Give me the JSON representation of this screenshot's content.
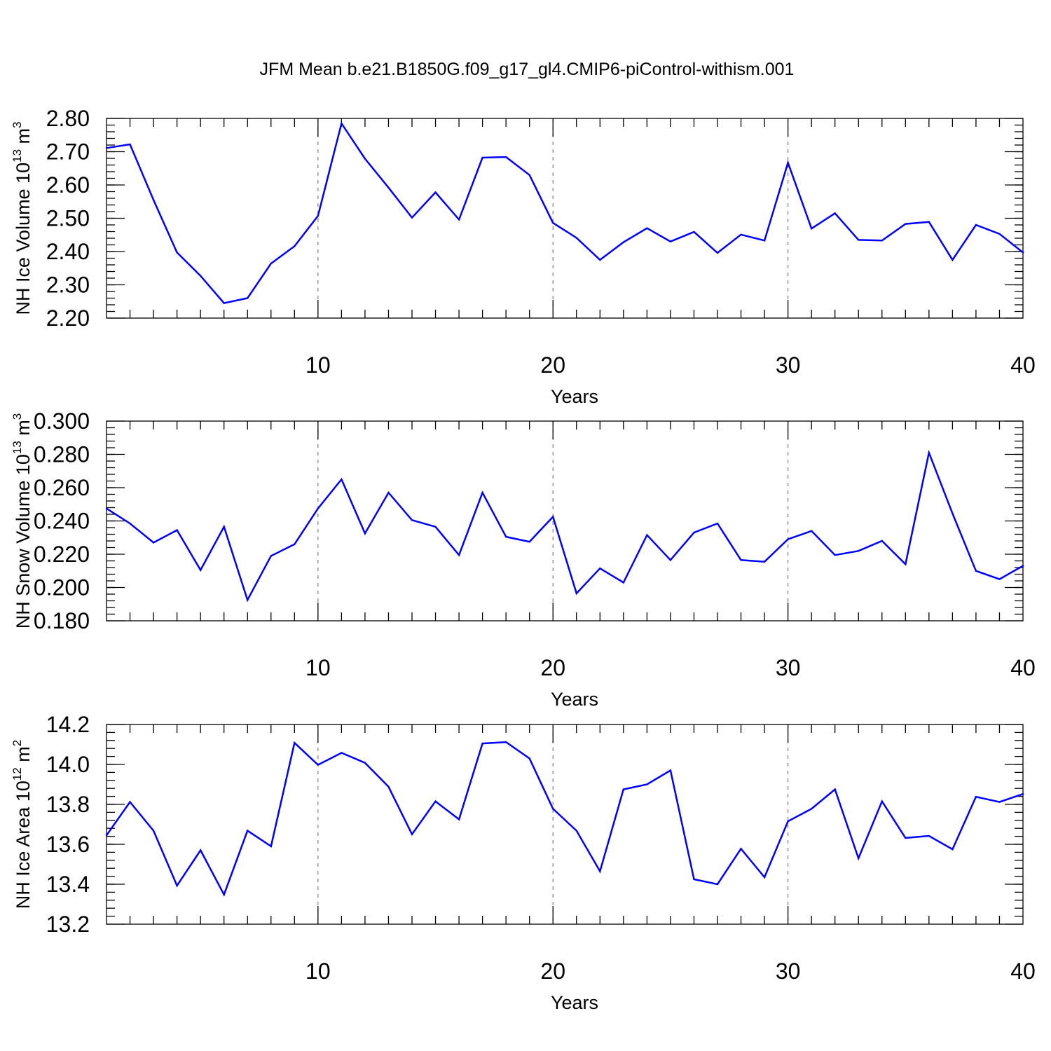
{
  "chart_data": {
    "title": "JFM Mean b.e21.B1850G.f09_g17_gl4.CMIP6-piControl-withism.001",
    "series_color": "#0000ff",
    "panels": [
      {
        "type": "line",
        "ylabel": {
          "main": "NH Ice Volume 10",
          "exp": "13",
          "unit": " m",
          "unit_exp": "3"
        },
        "xlabel": "Years",
        "xlim": [
          1,
          40
        ],
        "xticks": [
          10,
          20,
          30,
          40
        ],
        "xtick_labels": [
          "10",
          "20",
          "30",
          "40"
        ],
        "grid_x": [
          10,
          20,
          30
        ],
        "ylim": [
          2.2,
          2.8
        ],
        "yticks": [
          2.2,
          2.3,
          2.4,
          2.5,
          2.6,
          2.7,
          2.8
        ],
        "ytick_labels": [
          "2.20",
          "2.30",
          "2.40",
          "2.50",
          "2.60",
          "2.70",
          "2.80"
        ],
        "yminor_step": 0.02,
        "x": [
          1,
          2,
          3,
          4,
          5,
          6,
          7,
          8,
          9,
          10,
          11,
          12,
          13,
          14,
          15,
          16,
          17,
          18,
          19,
          20,
          21,
          22,
          23,
          24,
          25,
          26,
          27,
          28,
          29,
          30,
          31,
          32,
          33,
          34,
          35,
          36,
          37,
          38,
          39,
          40
        ],
        "values": [
          2.711,
          2.722,
          2.555,
          2.397,
          2.327,
          2.245,
          2.26,
          2.364,
          2.416,
          2.507,
          2.785,
          2.679,
          2.592,
          2.502,
          2.578,
          2.496,
          2.682,
          2.684,
          2.63,
          2.486,
          2.441,
          2.375,
          2.428,
          2.47,
          2.43,
          2.459,
          2.396,
          2.451,
          2.433,
          2.667,
          2.469,
          2.515,
          2.435,
          2.433,
          2.483,
          2.489,
          2.375,
          2.48,
          2.453,
          2.397
        ]
      },
      {
        "type": "line",
        "ylabel": {
          "main": "NH Snow Volume 10",
          "exp": "13",
          "unit": " m",
          "unit_exp": "3"
        },
        "xlabel": "Years",
        "xlim": [
          1,
          40
        ],
        "xticks": [
          10,
          20,
          30,
          40
        ],
        "xtick_labels": [
          "10",
          "20",
          "30",
          "40"
        ],
        "grid_x": [
          10,
          20,
          30
        ],
        "ylim": [
          0.18,
          0.3
        ],
        "yticks": [
          0.18,
          0.2,
          0.22,
          0.24,
          0.26,
          0.28,
          0.3
        ],
        "ytick_labels": [
          "0.180",
          "0.200",
          "0.220",
          "0.240",
          "0.260",
          "0.280",
          "0.300"
        ],
        "yminor_step": 0.004,
        "x": [
          1,
          2,
          3,
          4,
          5,
          6,
          7,
          8,
          9,
          10,
          11,
          12,
          13,
          14,
          15,
          16,
          17,
          18,
          19,
          20,
          21,
          22,
          23,
          24,
          25,
          26,
          27,
          28,
          29,
          30,
          31,
          32,
          33,
          34,
          35,
          36,
          37,
          38,
          39,
          40
        ],
        "values": [
          0.2475,
          0.2385,
          0.227,
          0.2345,
          0.2105,
          0.2365,
          0.1925,
          0.219,
          0.226,
          0.2475,
          0.265,
          0.2325,
          0.257,
          0.2405,
          0.2365,
          0.2195,
          0.257,
          0.2305,
          0.2275,
          0.2425,
          0.1965,
          0.2115,
          0.203,
          0.2315,
          0.2165,
          0.233,
          0.2385,
          0.2165,
          0.2155,
          0.229,
          0.234,
          0.2195,
          0.222,
          0.228,
          0.214,
          0.281,
          0.2445,
          0.21,
          0.205,
          0.213
        ]
      },
      {
        "type": "line",
        "ylabel": {
          "main": "NH Ice Area 10",
          "exp": "12",
          "unit": " m",
          "unit_exp": "2"
        },
        "xlabel": "Years",
        "xlim": [
          1,
          40
        ],
        "xticks": [
          10,
          20,
          30,
          40
        ],
        "xtick_labels": [
          "10",
          "20",
          "30",
          "40"
        ],
        "grid_x": [
          10,
          20,
          30
        ],
        "ylim": [
          13.2,
          14.2
        ],
        "yticks": [
          13.2,
          13.4,
          13.6,
          13.8,
          14.0,
          14.2
        ],
        "ytick_labels": [
          "13.2",
          "13.4",
          "13.6",
          "13.8",
          "14.0",
          "14.2"
        ],
        "yminor_step": 0.04,
        "x": [
          1,
          2,
          3,
          4,
          5,
          6,
          7,
          8,
          9,
          10,
          11,
          12,
          13,
          14,
          15,
          16,
          17,
          18,
          19,
          20,
          21,
          22,
          23,
          24,
          25,
          26,
          27,
          28,
          29,
          30,
          31,
          32,
          33,
          34,
          35,
          36,
          37,
          38,
          39,
          40
        ],
        "values": [
          13.645,
          13.812,
          13.668,
          13.393,
          13.57,
          13.348,
          13.668,
          13.59,
          14.108,
          13.998,
          14.058,
          14.008,
          13.888,
          13.65,
          13.815,
          13.725,
          14.105,
          14.112,
          14.03,
          13.778,
          13.668,
          13.465,
          13.875,
          13.9,
          13.97,
          13.425,
          13.4,
          13.578,
          13.435,
          13.715,
          13.778,
          13.875,
          13.53,
          13.815,
          13.632,
          13.642,
          13.575,
          13.838,
          13.812,
          13.852
        ]
      }
    ]
  }
}
